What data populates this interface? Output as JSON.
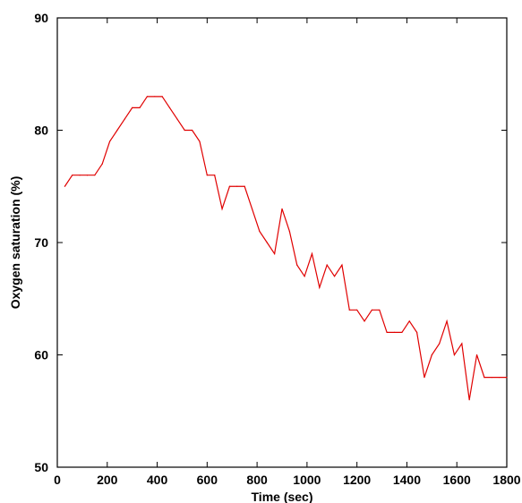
{
  "chart_data": {
    "type": "line",
    "title": "",
    "xlabel": "Time (sec)",
    "ylabel": "Oxygen saturation (%)",
    "xlim": [
      0,
      1800
    ],
    "ylim": [
      50,
      90
    ],
    "x_ticks": [
      0,
      200,
      400,
      600,
      800,
      1000,
      1200,
      1400,
      1600,
      1800
    ],
    "y_ticks": [
      50,
      60,
      70,
      80,
      90
    ],
    "grid": false,
    "series": [
      {
        "color": "#e00000",
        "x": [
          30,
          60,
          90,
          120,
          150,
          180,
          210,
          240,
          270,
          300,
          330,
          360,
          390,
          420,
          450,
          480,
          510,
          540,
          570,
          600,
          630,
          660,
          690,
          720,
          750,
          780,
          810,
          840,
          870,
          900,
          930,
          960,
          990,
          1020,
          1050,
          1080,
          1110,
          1140,
          1170,
          1200,
          1230,
          1260,
          1290,
          1320,
          1350,
          1380,
          1410,
          1440,
          1470,
          1500,
          1530,
          1560,
          1590,
          1620,
          1650,
          1680,
          1710,
          1740,
          1770,
          1800
        ],
        "y": [
          75,
          76,
          76,
          76,
          76,
          77,
          79,
          80,
          81,
          82,
          82,
          83,
          83,
          83,
          82,
          81,
          80,
          80,
          79,
          76,
          76,
          73,
          75,
          75,
          75,
          73,
          71,
          70,
          69,
          73,
          71,
          68,
          67,
          69,
          66,
          68,
          67,
          68,
          64,
          64,
          63,
          64,
          64,
          62,
          62,
          62,
          63,
          62,
          58,
          60,
          61,
          63,
          60,
          61,
          56,
          60,
          58,
          58,
          58,
          58
        ]
      }
    ]
  }
}
